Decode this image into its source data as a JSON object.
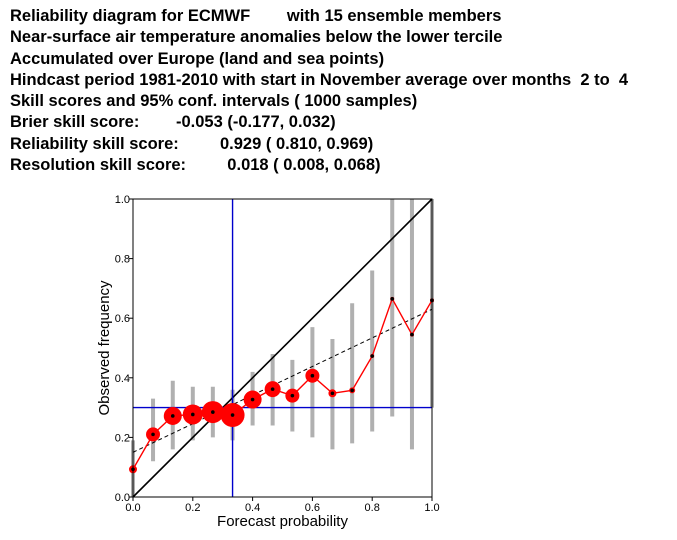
{
  "header": {
    "lines": [
      "Reliability diagram for ECMWF        with 15 ensemble members",
      "Near-surface air temperature anomalies below the lower tercile",
      "Accumulated over Europe (land and sea points)",
      "Hindcast period 1981-2010 with start in November average over months  2 to  4",
      "Skill scores and 95% conf. intervals ( 1000 samples)",
      "Brier skill score:        -0.053 (-0.177, 0.032)",
      "Reliability skill score:         0.929 ( 0.810, 0.969)",
      "Resolution skill score:         0.018 ( 0.008, 0.068)"
    ]
  },
  "chart_data": {
    "type": "scatter",
    "title": "",
    "xlabel": "Forecast probability",
    "ylabel": "Observed frequency",
    "xlim": [
      0,
      1
    ],
    "ylim": [
      0,
      1
    ],
    "xticks": [
      "0.0",
      "0.2",
      "0.4",
      "0.6",
      "0.8",
      "1.0"
    ],
    "yticks": [
      "0.0",
      "0.2",
      "0.4",
      "0.6",
      "0.8",
      "1.0"
    ],
    "grid": false,
    "legend": "none",
    "colors": {
      "reliability_line": "#ff0000",
      "markers": "#ff0000",
      "confidence_bars": "#b0b0b0",
      "climatology_lines": "#0000cc",
      "diagonal": "#000000",
      "fit_line": "#000000"
    },
    "climatology": {
      "x": 0.333,
      "y": 0.3
    },
    "diagonal": [
      [
        0,
        0
      ],
      [
        1,
        1
      ]
    ],
    "fit_line": [
      [
        0,
        0.15
      ],
      [
        1,
        0.63
      ]
    ],
    "points": [
      {
        "x": 0.0,
        "y": 0.093,
        "size": 4,
        "ci": [
          0.0,
          0.19
        ]
      },
      {
        "x": 0.067,
        "y": 0.21,
        "size": 7,
        "ci": [
          0.12,
          0.33
        ]
      },
      {
        "x": 0.133,
        "y": 0.272,
        "size": 9,
        "ci": [
          0.16,
          0.39
        ]
      },
      {
        "x": 0.2,
        "y": 0.277,
        "size": 10,
        "ci": [
          0.19,
          0.37
        ]
      },
      {
        "x": 0.267,
        "y": 0.285,
        "size": 11,
        "ci": [
          0.2,
          0.37
        ]
      },
      {
        "x": 0.333,
        "y": 0.275,
        "size": 12,
        "ci": [
          0.19,
          0.36
        ]
      },
      {
        "x": 0.4,
        "y": 0.327,
        "size": 9,
        "ci": [
          0.24,
          0.42
        ]
      },
      {
        "x": 0.467,
        "y": 0.362,
        "size": 8,
        "ci": [
          0.24,
          0.48
        ]
      },
      {
        "x": 0.533,
        "y": 0.34,
        "size": 7,
        "ci": [
          0.22,
          0.46
        ]
      },
      {
        "x": 0.6,
        "y": 0.407,
        "size": 7,
        "ci": [
          0.2,
          0.57
        ]
      },
      {
        "x": 0.667,
        "y": 0.348,
        "size": 4,
        "ci": [
          0.16,
          0.53
        ]
      },
      {
        "x": 0.733,
        "y": 0.358,
        "size": 3,
        "ci": [
          0.18,
          0.65
        ]
      },
      {
        "x": 0.8,
        "y": 0.473,
        "size": 2,
        "ci": [
          0.22,
          0.76
        ]
      },
      {
        "x": 0.867,
        "y": 0.665,
        "size": 2,
        "ci": [
          0.27,
          1.0
        ]
      },
      {
        "x": 0.933,
        "y": 0.545,
        "size": 2,
        "ci": [
          0.16,
          1.0
        ]
      },
      {
        "x": 1.0,
        "y": 0.66,
        "size": 2,
        "ci": [
          0.3,
          1.0
        ]
      }
    ]
  }
}
